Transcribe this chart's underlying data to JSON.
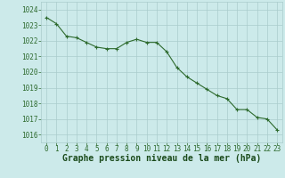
{
  "x": [
    0,
    1,
    2,
    3,
    4,
    5,
    6,
    7,
    8,
    9,
    10,
    11,
    12,
    13,
    14,
    15,
    16,
    17,
    18,
    19,
    20,
    21,
    22,
    23
  ],
  "y": [
    1023.5,
    1023.1,
    1022.3,
    1022.2,
    1021.9,
    1021.6,
    1021.5,
    1021.5,
    1021.9,
    1022.1,
    1021.9,
    1021.9,
    1021.3,
    1020.3,
    1019.7,
    1019.3,
    1018.9,
    1018.5,
    1018.3,
    1017.6,
    1017.6,
    1017.1,
    1017.0,
    1016.3
  ],
  "line_color": "#2d6a2d",
  "marker_color": "#2d6a2d",
  "bg_color": "#cceaea",
  "grid_color": "#aacccc",
  "xlabel": "Graphe pression niveau de la mer (hPa)",
  "xlabel_color": "#1a4a1a",
  "xlabel_fontsize": 7,
  "tick_color": "#2d6a2d",
  "tick_fontsize": 5.5,
  "ylim": [
    1015.5,
    1024.5
  ],
  "yticks": [
    1016,
    1017,
    1018,
    1019,
    1020,
    1021,
    1022,
    1023,
    1024
  ],
  "xticks": [
    0,
    1,
    2,
    3,
    4,
    5,
    6,
    7,
    8,
    9,
    10,
    11,
    12,
    13,
    14,
    15,
    16,
    17,
    18,
    19,
    20,
    21,
    22,
    23
  ],
  "line_width": 0.8,
  "marker_size": 2.5
}
